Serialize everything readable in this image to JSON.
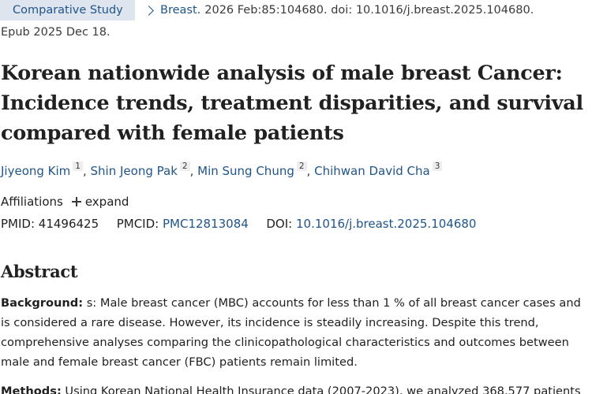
{
  "header": {
    "publication_type": "Comparative Study",
    "journal": "Breast.",
    "citation": "2026 Feb:85:104680. doi: 10.1016/j.breast.2025.104680.",
    "epub": "Epub 2025 Dec 18."
  },
  "article": {
    "title": "Korean nationwide analysis of male breast Cancer: Incidence trends, treatment disparities, and survival compared with female patients",
    "authors": [
      {
        "name": "Jiyeong Kim",
        "affiliation": "1"
      },
      {
        "name": "Shin Jeong Pak",
        "affiliation": "2"
      },
      {
        "name": "Min Sung Chung",
        "affiliation": "2"
      },
      {
        "name": "Chihwan David Cha",
        "affiliation": "3"
      }
    ],
    "author_separator": ", ",
    "affiliations_label": "Affiliations",
    "expand_label": "expand",
    "pmid_label": "PMID:",
    "pmid": "41496425",
    "pmcid_label": "PMCID:",
    "pmcid": "PMC12813084",
    "doi_label": "DOI:",
    "doi": "10.1016/j.breast.2025.104680"
  },
  "abstract": {
    "heading": "Abstract",
    "sections": [
      {
        "label": "Background:",
        "text": " s: Male breast cancer (MBC) accounts for less than 1 % of all breast cancer cases and is considered a rare disease. However, its incidence is steadily increasing. Despite this trend, comprehensive analyses comparing the clinicopathological characteristics and outcomes between male and female breast cancer (FBC) patients remain limited."
      },
      {
        "label": "Methods:",
        "text": " Using Korean National Health Insurance data (2007-2023), we analyzed 368,577 patients"
      }
    ]
  },
  "colors": {
    "link": "#20558a",
    "pubtype_bg": "#dfe5ee",
    "text": "#212121"
  }
}
